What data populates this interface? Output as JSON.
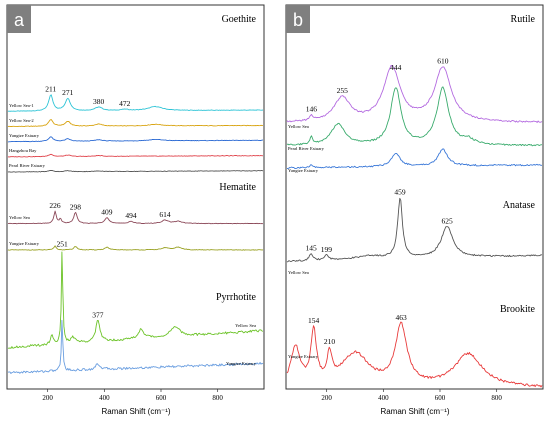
{
  "chart_data": [
    {
      "panel": "a",
      "type": "line",
      "xlabel": "Raman Shift (cm⁻¹)",
      "xlim": [
        60,
        960
      ],
      "xticks": [
        "200",
        "400",
        "600",
        "800"
      ],
      "tick_values": [
        200,
        400,
        600,
        800
      ],
      "groups": [
        {
          "mineral": "Goethite",
          "peaks": [
            {
              "label": "211",
              "x": 211,
              "series": 0
            },
            {
              "label": "271",
              "x": 271,
              "series": 0
            },
            {
              "label": "380",
              "x": 380,
              "series": 0
            },
            {
              "label": "472",
              "x": 472,
              "series": 0
            }
          ],
          "series": [
            {
              "name": "Yellow Sea-1",
              "color": "#2ec4d6",
              "base": 0.7,
              "slope": 0.06,
              "peaks": [
                [
                  211,
                  0.8,
                  9
                ],
                [
                  271,
                  0.62,
                  11
                ],
                [
                  380,
                  0.18,
                  16
                ],
                [
                  472,
                  0.06,
                  18
                ],
                [
                  580,
                  0.2,
                  30
                ]
              ]
            },
            {
              "name": "Yellow Sea-2",
              "color": "#d9a514",
              "base": 0.5,
              "slope": 0.05,
              "peaks": [
                [
                  211,
                  0.34,
                  9
                ],
                [
                  271,
                  0.24,
                  11
                ],
                [
                  380,
                  0.1,
                  16
                ],
                [
                  580,
                  0.08,
                  30
                ]
              ]
            },
            {
              "name": "Yangtze Estuary",
              "color": "#2a69d3",
              "base": 0.33,
              "slope": 0.07,
              "peaks": [
                [
                  211,
                  0.23,
                  9
                ],
                [
                  271,
                  0.12,
                  11
                ],
                [
                  380,
                  0.07,
                  16
                ],
                [
                  580,
                  0.07,
                  30
                ]
              ]
            },
            {
              "name": "Hangzhou Bay",
              "color": "#e0454d",
              "base": 0.19,
              "slope": 0.06,
              "peaks": [
                [
                  211,
                  0.12,
                  9
                ],
                [
                  271,
                  0.07,
                  11
                ],
                [
                  380,
                  0.04,
                  16
                ]
              ]
            },
            {
              "name": "Pearl River Estuary",
              "color": "#555555",
              "base": 0.04,
              "slope": 0.06,
              "peaks": [
                [
                  211,
                  0.07,
                  9
                ],
                [
                  271,
                  0.05,
                  11
                ],
                [
                  380,
                  0.03,
                  16
                ]
              ]
            }
          ]
        },
        {
          "mineral": "Hematite",
          "peaks": [
            {
              "label": "226",
              "x": 226,
              "series": 0
            },
            {
              "label": "298",
              "x": 298,
              "series": 0
            },
            {
              "label": "409",
              "x": 409,
              "series": 0
            },
            {
              "label": "494",
              "x": 494,
              "series": 0
            },
            {
              "label": "614",
              "x": 614,
              "series": 0
            }
          ],
          "series": [
            {
              "name": "Yellow Sea",
              "color": "#8c4a5a",
              "base": 0.4,
              "slope": 0.0,
              "peaks": [
                [
                  226,
                  0.55,
                  5
                ],
                [
                  245,
                  0.2,
                  5
                ],
                [
                  298,
                  0.5,
                  7
                ],
                [
                  409,
                  0.28,
                  9
                ],
                [
                  494,
                  0.1,
                  10
                ],
                [
                  614,
                  0.15,
                  14
                ],
                [
                  660,
                  0.1,
                  16
                ]
              ]
            },
            {
              "name": "Yangtze Estuary",
              "color": "#9aa224",
              "base": 0.06,
              "slope": 0.0,
              "peaks": [
                [
                  226,
                  0.18,
                  5
                ],
                [
                  298,
                  0.16,
                  7
                ],
                [
                  409,
                  0.12,
                  9
                ],
                [
                  614,
                  0.09,
                  14
                ],
                [
                  660,
                  0.12,
                  16
                ]
              ]
            }
          ]
        },
        {
          "mineral": "Pyrrhotite",
          "peaks": [
            {
              "label": "251",
              "x": 251,
              "series": 0
            },
            {
              "label": "377",
              "x": 377,
              "series": 0
            }
          ],
          "series": [
            {
              "name": "Yellow Sea",
              "color": "#6cc328",
              "base": 0.3,
              "slope": 0.18,
              "peaks": [
                [
                  215,
                  0.1,
                  6
                ],
                [
                  251,
                  1.0,
                  3
                ],
                [
                  290,
                  0.06,
                  10
                ],
                [
                  377,
                  0.22,
                  9
                ],
                [
                  530,
                  0.1,
                  12
                ],
                [
                  650,
                  0.1,
                  20
                ]
              ]
            },
            {
              "name": "Yangtze Estuary",
              "color": "#6a9ee0",
              "base": 0.06,
              "slope": 0.1,
              "peaks": [
                [
                  251,
                  0.55,
                  3
                ],
                [
                  377,
                  0.06,
                  9
                ]
              ]
            }
          ]
        }
      ]
    },
    {
      "panel": "b",
      "type": "line",
      "xlabel": "Raman Shift (cm⁻¹)",
      "xlim": [
        60,
        960
      ],
      "xticks": [
        "200",
        "400",
        "600",
        "800"
      ],
      "tick_values": [
        200,
        400,
        600,
        800
      ],
      "groups": [
        {
          "mineral": "Rutile",
          "peaks": [
            {
              "label": "146",
              "x": 146,
              "series": 0
            },
            {
              "label": "255",
              "x": 255,
              "series": 0
            },
            {
              "label": "444",
              "x": 444,
              "series": 0
            },
            {
              "label": "610",
              "x": 610,
              "series": 0
            }
          ],
          "series": [
            {
              "name": "Yellow Sea",
              "color": "#b46be0",
              "base": 0.45,
              "slope": 0.0,
              "peaks": [
                [
                  146,
                  0.08,
                  6
                ],
                [
                  255,
                  0.4,
                  35
                ],
                [
                  430,
                  0.9,
                  35
                ],
                [
                  610,
                  0.9,
                  35
                ]
              ]
            },
            {
              "name": "Pearl River Estuary",
              "color": "#3aab6d",
              "base": 0.1,
              "slope": 0.0,
              "peaks": [
                [
                  146,
                  0.12,
                  5
                ],
                [
                  240,
                  0.35,
                  30
                ],
                [
                  444,
                  0.95,
                  22
                ],
                [
                  610,
                  0.95,
                  25
                ],
                [
                  700,
                  0.08,
                  25
                ]
              ]
            },
            {
              "name": "Yangtze Estuary",
              "color": "#3a78d8",
              "base": 0.02,
              "slope": 0.05,
              "peaks": [
                [
                  146,
                  0.05,
                  6
                ],
                [
                  444,
                  0.22,
                  18
                ],
                [
                  610,
                  0.28,
                  20
                ]
              ]
            }
          ]
        },
        {
          "mineral": "Anatase",
          "peaks": [
            {
              "label": "145",
              "x": 145,
              "series": 0
            },
            {
              "label": "199",
              "x": 199,
              "series": 0
            },
            {
              "label": "459",
              "x": 459,
              "series": 0
            },
            {
              "label": "625",
              "x": 625,
              "series": 0
            }
          ],
          "series": [
            {
              "name": "Yellow Sea",
              "color": "#555555",
              "base": 0.12,
              "slope": 0.1,
              "peaks": [
                [
                  145,
                  0.12,
                  8
                ],
                [
                  199,
                  0.08,
                  10
                ],
                [
                  459,
                  1.0,
                  10
                ],
                [
                  625,
                  0.52,
                  25
                ],
                [
                  350,
                  0.06,
                  60
                ]
              ]
            }
          ]
        },
        {
          "mineral": "Brookite",
          "peaks": [
            {
              "label": "154",
              "x": 154,
              "series": 0
            },
            {
              "label": "210",
              "x": 210,
              "series": 0
            },
            {
              "label": "463",
              "x": 463,
              "series": 0
            }
          ],
          "series": [
            {
              "name": "Yangtze Estuary",
              "color": "#e83b3b",
              "base": 0.0,
              "slope": 0.0,
              "peaks": [
                [
                  154,
                  0.55,
                  12
                ],
                [
                  210,
                  0.28,
                  10
                ],
                [
                  300,
                  0.35,
                  60
                ],
                [
                  463,
                  0.62,
                  25
                ],
                [
                  700,
                  0.35,
                  60
                ],
                [
                  90,
                  0.4,
                  20
                ]
              ]
            }
          ]
        }
      ]
    }
  ]
}
